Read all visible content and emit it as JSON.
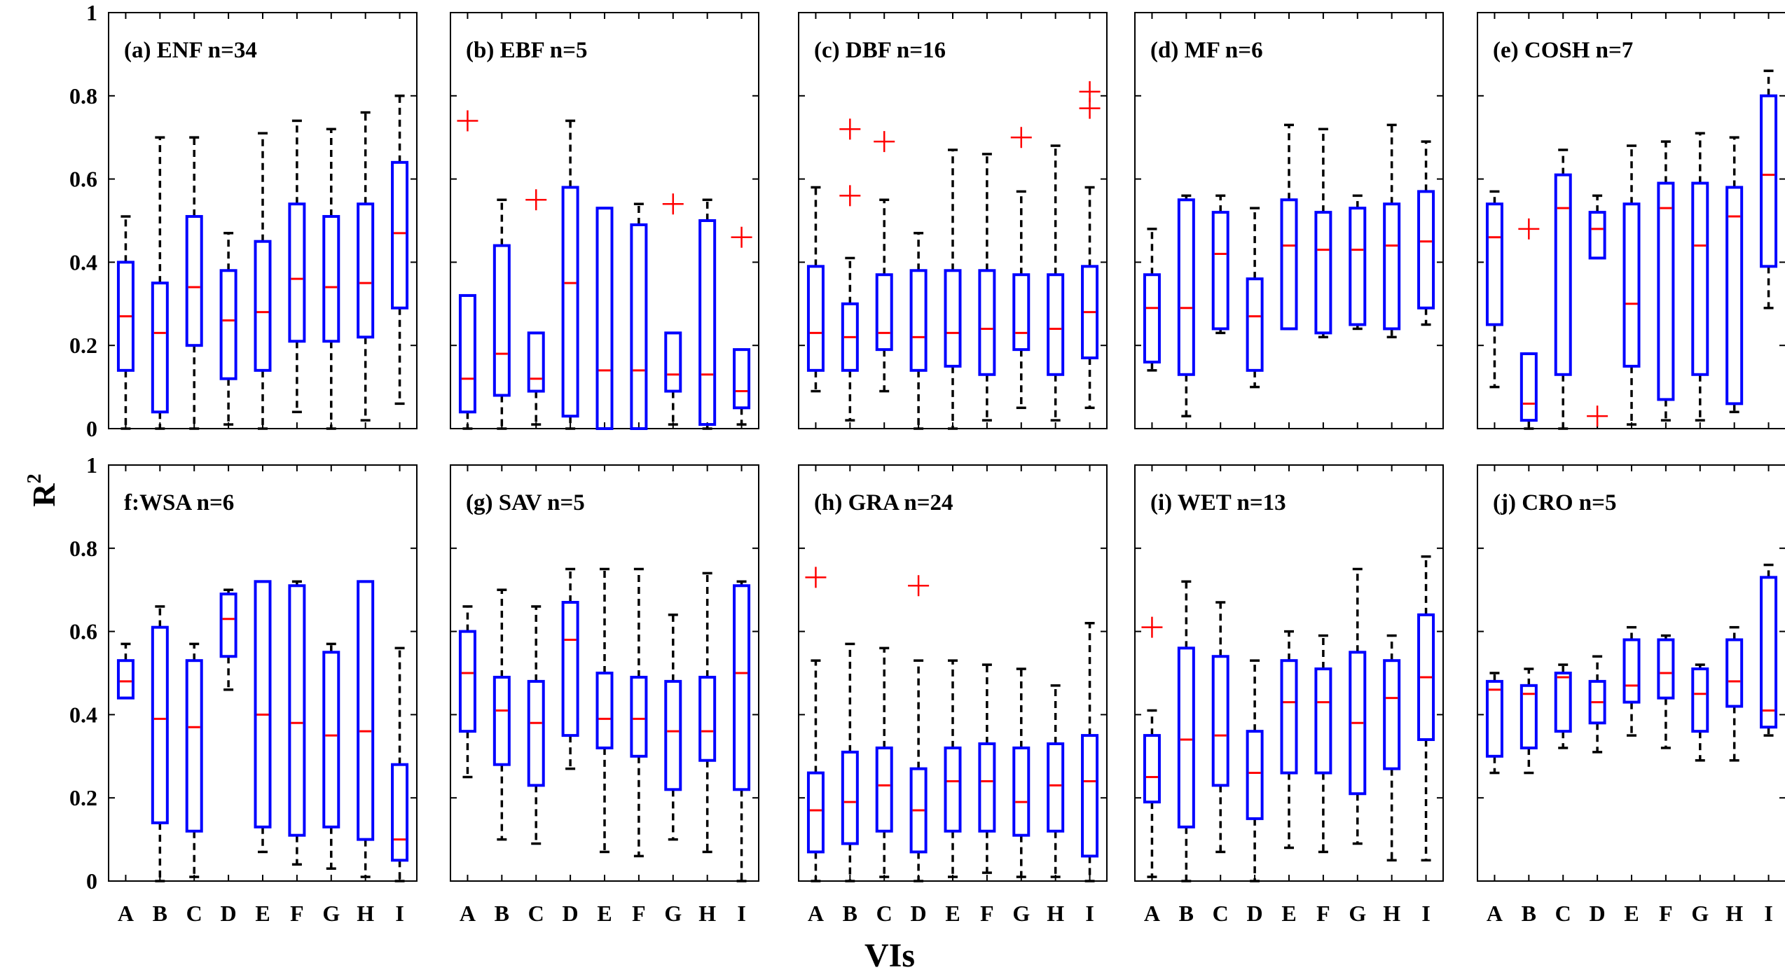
{
  "figure": {
    "xlabel": "VIs",
    "ylabel_base": "R",
    "ylabel_sup": "2",
    "yticks": [
      0,
      0.2,
      0.4,
      0.6,
      0.8,
      1
    ],
    "ytick_labels": [
      "0",
      "0.2",
      "0.4",
      "0.6",
      "0.8",
      "1"
    ],
    "colors": {
      "box": "#0000ff",
      "median": "#ff0000",
      "outlier": "#ff0000",
      "whisker": "#000000",
      "frame": "#000000"
    }
  },
  "chart_data": [
    {
      "type": "boxplot",
      "title": "(a) ENF  n=34",
      "ylim": [
        0,
        1
      ],
      "categories": [
        "A",
        "B",
        "C",
        "D",
        "E",
        "F",
        "G",
        "H",
        "I"
      ],
      "boxes": [
        {
          "q1": 0.14,
          "median": 0.27,
          "q3": 0.4,
          "low": 0.0,
          "high": 0.51,
          "outliers": []
        },
        {
          "q1": 0.04,
          "median": 0.23,
          "q3": 0.35,
          "low": 0.0,
          "high": 0.7,
          "outliers": []
        },
        {
          "q1": 0.2,
          "median": 0.34,
          "q3": 0.51,
          "low": 0.0,
          "high": 0.7,
          "outliers": []
        },
        {
          "q1": 0.12,
          "median": 0.26,
          "q3": 0.38,
          "low": 0.01,
          "high": 0.47,
          "outliers": []
        },
        {
          "q1": 0.14,
          "median": 0.28,
          "q3": 0.45,
          "low": 0.0,
          "high": 0.71,
          "outliers": []
        },
        {
          "q1": 0.21,
          "median": 0.36,
          "q3": 0.54,
          "low": 0.04,
          "high": 0.74,
          "outliers": []
        },
        {
          "q1": 0.21,
          "median": 0.34,
          "q3": 0.51,
          "low": 0.0,
          "high": 0.72,
          "outliers": []
        },
        {
          "q1": 0.22,
          "median": 0.35,
          "q3": 0.54,
          "low": 0.02,
          "high": 0.76,
          "outliers": []
        },
        {
          "q1": 0.29,
          "median": 0.47,
          "q3": 0.64,
          "low": 0.06,
          "high": 0.8,
          "outliers": []
        }
      ]
    },
    {
      "type": "boxplot",
      "title": "(b)  EBF  n=5",
      "ylim": [
        0,
        1
      ],
      "categories": [
        "A",
        "B",
        "C",
        "D",
        "E",
        "F",
        "G",
        "H",
        "I"
      ],
      "boxes": [
        {
          "q1": 0.04,
          "median": 0.12,
          "q3": 0.32,
          "low": 0.0,
          "high": 0.32,
          "outliers": [
            0.74
          ]
        },
        {
          "q1": 0.08,
          "median": 0.18,
          "q3": 0.44,
          "low": 0.0,
          "high": 0.55,
          "outliers": []
        },
        {
          "q1": 0.09,
          "median": 0.12,
          "q3": 0.23,
          "low": 0.01,
          "high": 0.23,
          "outliers": [
            0.55
          ]
        },
        {
          "q1": 0.03,
          "median": 0.35,
          "q3": 0.58,
          "low": 0.0,
          "high": 0.74,
          "outliers": []
        },
        {
          "q1": 0.0,
          "median": 0.14,
          "q3": 0.53,
          "low": 0.0,
          "high": 0.53,
          "outliers": []
        },
        {
          "q1": 0.0,
          "median": 0.14,
          "q3": 0.49,
          "low": 0.0,
          "high": 0.54,
          "outliers": []
        },
        {
          "q1": 0.09,
          "median": 0.13,
          "q3": 0.23,
          "low": 0.01,
          "high": 0.23,
          "outliers": [
            0.54
          ]
        },
        {
          "q1": 0.01,
          "median": 0.13,
          "q3": 0.5,
          "low": 0.0,
          "high": 0.55,
          "outliers": []
        },
        {
          "q1": 0.05,
          "median": 0.09,
          "q3": 0.19,
          "low": 0.01,
          "high": 0.19,
          "outliers": [
            0.46
          ]
        }
      ]
    },
    {
      "type": "boxplot",
      "title": "(c) DBF  n=16",
      "ylim": [
        0,
        1
      ],
      "categories": [
        "A",
        "B",
        "C",
        "D",
        "E",
        "F",
        "G",
        "H",
        "I"
      ],
      "boxes": [
        {
          "q1": 0.14,
          "median": 0.23,
          "q3": 0.39,
          "low": 0.09,
          "high": 0.58,
          "outliers": []
        },
        {
          "q1": 0.14,
          "median": 0.22,
          "q3": 0.3,
          "low": 0.02,
          "high": 0.41,
          "outliers": [
            0.56,
            0.72
          ]
        },
        {
          "q1": 0.19,
          "median": 0.23,
          "q3": 0.37,
          "low": 0.09,
          "high": 0.55,
          "outliers": [
            0.69
          ]
        },
        {
          "q1": 0.14,
          "median": 0.22,
          "q3": 0.38,
          "low": 0.0,
          "high": 0.47,
          "outliers": []
        },
        {
          "q1": 0.15,
          "median": 0.23,
          "q3": 0.38,
          "low": 0.0,
          "high": 0.67,
          "outliers": []
        },
        {
          "q1": 0.13,
          "median": 0.24,
          "q3": 0.38,
          "low": 0.02,
          "high": 0.66,
          "outliers": []
        },
        {
          "q1": 0.19,
          "median": 0.23,
          "q3": 0.37,
          "low": 0.05,
          "high": 0.57,
          "outliers": [
            0.7
          ]
        },
        {
          "q1": 0.13,
          "median": 0.24,
          "q3": 0.37,
          "low": 0.02,
          "high": 0.68,
          "outliers": []
        },
        {
          "q1": 0.17,
          "median": 0.28,
          "q3": 0.39,
          "low": 0.05,
          "high": 0.58,
          "outliers": [
            0.77,
            0.81
          ]
        }
      ]
    },
    {
      "type": "boxplot",
      "title": "(d) MF  n=6",
      "ylim": [
        0,
        1
      ],
      "categories": [
        "A",
        "B",
        "C",
        "D",
        "E",
        "F",
        "G",
        "H",
        "I"
      ],
      "boxes": [
        {
          "q1": 0.16,
          "median": 0.29,
          "q3": 0.37,
          "low": 0.14,
          "high": 0.48,
          "outliers": []
        },
        {
          "q1": 0.13,
          "median": 0.29,
          "q3": 0.55,
          "low": 0.03,
          "high": 0.56,
          "outliers": []
        },
        {
          "q1": 0.24,
          "median": 0.42,
          "q3": 0.52,
          "low": 0.23,
          "high": 0.56,
          "outliers": []
        },
        {
          "q1": 0.14,
          "median": 0.27,
          "q3": 0.36,
          "low": 0.1,
          "high": 0.53,
          "outliers": []
        },
        {
          "q1": 0.24,
          "median": 0.44,
          "q3": 0.55,
          "low": 0.24,
          "high": 0.73,
          "outliers": []
        },
        {
          "q1": 0.23,
          "median": 0.43,
          "q3": 0.52,
          "low": 0.22,
          "high": 0.72,
          "outliers": []
        },
        {
          "q1": 0.25,
          "median": 0.43,
          "q3": 0.53,
          "low": 0.24,
          "high": 0.56,
          "outliers": []
        },
        {
          "q1": 0.24,
          "median": 0.44,
          "q3": 0.54,
          "low": 0.22,
          "high": 0.73,
          "outliers": []
        },
        {
          "q1": 0.29,
          "median": 0.45,
          "q3": 0.57,
          "low": 0.25,
          "high": 0.69,
          "outliers": []
        }
      ]
    },
    {
      "type": "boxplot",
      "title": "(e) COSH  n=7",
      "ylim": [
        0,
        1
      ],
      "categories": [
        "A",
        "B",
        "C",
        "D",
        "E",
        "F",
        "G",
        "H",
        "I"
      ],
      "boxes": [
        {
          "q1": 0.25,
          "median": 0.46,
          "q3": 0.54,
          "low": 0.1,
          "high": 0.57,
          "outliers": []
        },
        {
          "q1": 0.02,
          "median": 0.06,
          "q3": 0.18,
          "low": 0.0,
          "high": 0.18,
          "outliers": [
            0.48
          ]
        },
        {
          "q1": 0.13,
          "median": 0.53,
          "q3": 0.61,
          "low": 0.0,
          "high": 0.67,
          "outliers": []
        },
        {
          "q1": 0.41,
          "median": 0.48,
          "q3": 0.52,
          "low": 0.41,
          "high": 0.56,
          "outliers": [
            0.03
          ]
        },
        {
          "q1": 0.15,
          "median": 0.3,
          "q3": 0.54,
          "low": 0.01,
          "high": 0.68,
          "outliers": []
        },
        {
          "q1": 0.07,
          "median": 0.53,
          "q3": 0.59,
          "low": 0.02,
          "high": 0.69,
          "outliers": []
        },
        {
          "q1": 0.13,
          "median": 0.44,
          "q3": 0.59,
          "low": 0.02,
          "high": 0.71,
          "outliers": []
        },
        {
          "q1": 0.06,
          "median": 0.51,
          "q3": 0.58,
          "low": 0.04,
          "high": 0.7,
          "outliers": []
        },
        {
          "q1": 0.39,
          "median": 0.61,
          "q3": 0.8,
          "low": 0.29,
          "high": 0.86,
          "outliers": []
        }
      ]
    },
    {
      "type": "boxplot",
      "title": "f:WSA  n=6",
      "ylim": [
        0,
        1
      ],
      "categories": [
        "A",
        "B",
        "C",
        "D",
        "E",
        "F",
        "G",
        "H",
        "I"
      ],
      "boxes": [
        {
          "q1": 0.44,
          "median": 0.48,
          "q3": 0.53,
          "low": 0.44,
          "high": 0.57,
          "outliers": []
        },
        {
          "q1": 0.14,
          "median": 0.39,
          "q3": 0.61,
          "low": 0.0,
          "high": 0.66,
          "outliers": []
        },
        {
          "q1": 0.12,
          "median": 0.37,
          "q3": 0.53,
          "low": 0.01,
          "high": 0.57,
          "outliers": []
        },
        {
          "q1": 0.54,
          "median": 0.63,
          "q3": 0.69,
          "low": 0.46,
          "high": 0.7,
          "outliers": []
        },
        {
          "q1": 0.13,
          "median": 0.4,
          "q3": 0.72,
          "low": 0.07,
          "high": 0.72,
          "outliers": []
        },
        {
          "q1": 0.11,
          "median": 0.38,
          "q3": 0.71,
          "low": 0.04,
          "high": 0.72,
          "outliers": []
        },
        {
          "q1": 0.13,
          "median": 0.35,
          "q3": 0.55,
          "low": 0.03,
          "high": 0.57,
          "outliers": []
        },
        {
          "q1": 0.1,
          "median": 0.36,
          "q3": 0.72,
          "low": 0.01,
          "high": 0.72,
          "outliers": []
        },
        {
          "q1": 0.05,
          "median": 0.1,
          "q3": 0.28,
          "low": 0.0,
          "high": 0.56,
          "outliers": []
        }
      ]
    },
    {
      "type": "boxplot",
      "title": "(g) SAV  n=5",
      "ylim": [
        0,
        1
      ],
      "categories": [
        "A",
        "B",
        "C",
        "D",
        "E",
        "F",
        "G",
        "H",
        "I"
      ],
      "boxes": [
        {
          "q1": 0.36,
          "median": 0.5,
          "q3": 0.6,
          "low": 0.25,
          "high": 0.66,
          "outliers": []
        },
        {
          "q1": 0.28,
          "median": 0.41,
          "q3": 0.49,
          "low": 0.1,
          "high": 0.7,
          "outliers": []
        },
        {
          "q1": 0.23,
          "median": 0.38,
          "q3": 0.48,
          "low": 0.09,
          "high": 0.66,
          "outliers": []
        },
        {
          "q1": 0.35,
          "median": 0.58,
          "q3": 0.67,
          "low": 0.27,
          "high": 0.75,
          "outliers": []
        },
        {
          "q1": 0.32,
          "median": 0.39,
          "q3": 0.5,
          "low": 0.07,
          "high": 0.75,
          "outliers": []
        },
        {
          "q1": 0.3,
          "median": 0.39,
          "q3": 0.49,
          "low": 0.06,
          "high": 0.75,
          "outliers": []
        },
        {
          "q1": 0.22,
          "median": 0.36,
          "q3": 0.48,
          "low": 0.1,
          "high": 0.64,
          "outliers": []
        },
        {
          "q1": 0.29,
          "median": 0.36,
          "q3": 0.49,
          "low": 0.07,
          "high": 0.74,
          "outliers": []
        },
        {
          "q1": 0.22,
          "median": 0.5,
          "q3": 0.71,
          "low": 0.0,
          "high": 0.72,
          "outliers": []
        }
      ]
    },
    {
      "type": "boxplot",
      "title": "(h) GRA  n=24",
      "ylim": [
        0,
        1
      ],
      "categories": [
        "A",
        "B",
        "C",
        "D",
        "E",
        "F",
        "G",
        "H",
        "I"
      ],
      "boxes": [
        {
          "q1": 0.07,
          "median": 0.17,
          "q3": 0.26,
          "low": 0.0,
          "high": 0.53,
          "outliers": [
            0.73
          ]
        },
        {
          "q1": 0.09,
          "median": 0.19,
          "q3": 0.31,
          "low": 0.0,
          "high": 0.57,
          "outliers": []
        },
        {
          "q1": 0.12,
          "median": 0.23,
          "q3": 0.32,
          "low": 0.01,
          "high": 0.56,
          "outliers": []
        },
        {
          "q1": 0.07,
          "median": 0.17,
          "q3": 0.27,
          "low": 0.0,
          "high": 0.53,
          "outliers": [
            0.71
          ]
        },
        {
          "q1": 0.12,
          "median": 0.24,
          "q3": 0.32,
          "low": 0.01,
          "high": 0.53,
          "outliers": []
        },
        {
          "q1": 0.12,
          "median": 0.24,
          "q3": 0.33,
          "low": 0.02,
          "high": 0.52,
          "outliers": []
        },
        {
          "q1": 0.11,
          "median": 0.19,
          "q3": 0.32,
          "low": 0.01,
          "high": 0.51,
          "outliers": []
        },
        {
          "q1": 0.12,
          "median": 0.23,
          "q3": 0.33,
          "low": 0.01,
          "high": 0.47,
          "outliers": []
        },
        {
          "q1": 0.06,
          "median": 0.24,
          "q3": 0.35,
          "low": 0.0,
          "high": 0.62,
          "outliers": []
        }
      ]
    },
    {
      "type": "boxplot",
      "title": "(i) WET  n=13",
      "ylim": [
        0,
        1
      ],
      "categories": [
        "A",
        "B",
        "C",
        "D",
        "E",
        "F",
        "G",
        "H",
        "I"
      ],
      "boxes": [
        {
          "q1": 0.19,
          "median": 0.25,
          "q3": 0.35,
          "low": 0.01,
          "high": 0.41,
          "outliers": [
            0.61
          ]
        },
        {
          "q1": 0.13,
          "median": 0.34,
          "q3": 0.56,
          "low": 0.0,
          "high": 0.72,
          "outliers": []
        },
        {
          "q1": 0.23,
          "median": 0.35,
          "q3": 0.54,
          "low": 0.07,
          "high": 0.67,
          "outliers": []
        },
        {
          "q1": 0.15,
          "median": 0.26,
          "q3": 0.36,
          "low": 0.0,
          "high": 0.53,
          "outliers": []
        },
        {
          "q1": 0.26,
          "median": 0.43,
          "q3": 0.53,
          "low": 0.08,
          "high": 0.6,
          "outliers": []
        },
        {
          "q1": 0.26,
          "median": 0.43,
          "q3": 0.51,
          "low": 0.07,
          "high": 0.59,
          "outliers": []
        },
        {
          "q1": 0.21,
          "median": 0.38,
          "q3": 0.55,
          "low": 0.09,
          "high": 0.75,
          "outliers": []
        },
        {
          "q1": 0.27,
          "median": 0.44,
          "q3": 0.53,
          "low": 0.05,
          "high": 0.59,
          "outliers": []
        },
        {
          "q1": 0.34,
          "median": 0.49,
          "q3": 0.64,
          "low": 0.05,
          "high": 0.78,
          "outliers": []
        }
      ]
    },
    {
      "type": "boxplot",
      "title": "(j) CRO  n=5",
      "ylim": [
        0,
        1
      ],
      "categories": [
        "A",
        "B",
        "C",
        "D",
        "E",
        "F",
        "G",
        "H",
        "I"
      ],
      "boxes": [
        {
          "q1": 0.3,
          "median": 0.46,
          "q3": 0.48,
          "low": 0.26,
          "high": 0.5,
          "outliers": []
        },
        {
          "q1": 0.32,
          "median": 0.45,
          "q3": 0.47,
          "low": 0.26,
          "high": 0.51,
          "outliers": []
        },
        {
          "q1": 0.36,
          "median": 0.49,
          "q3": 0.5,
          "low": 0.32,
          "high": 0.52,
          "outliers": []
        },
        {
          "q1": 0.38,
          "median": 0.43,
          "q3": 0.48,
          "low": 0.31,
          "high": 0.54,
          "outliers": []
        },
        {
          "q1": 0.43,
          "median": 0.47,
          "q3": 0.58,
          "low": 0.35,
          "high": 0.61,
          "outliers": []
        },
        {
          "q1": 0.44,
          "median": 0.5,
          "q3": 0.58,
          "low": 0.32,
          "high": 0.59,
          "outliers": []
        },
        {
          "q1": 0.36,
          "median": 0.45,
          "q3": 0.51,
          "low": 0.29,
          "high": 0.52,
          "outliers": []
        },
        {
          "q1": 0.42,
          "median": 0.48,
          "q3": 0.58,
          "low": 0.29,
          "high": 0.61,
          "outliers": []
        },
        {
          "q1": 0.37,
          "median": 0.41,
          "q3": 0.73,
          "low": 0.35,
          "high": 0.76,
          "outliers": []
        }
      ]
    }
  ]
}
